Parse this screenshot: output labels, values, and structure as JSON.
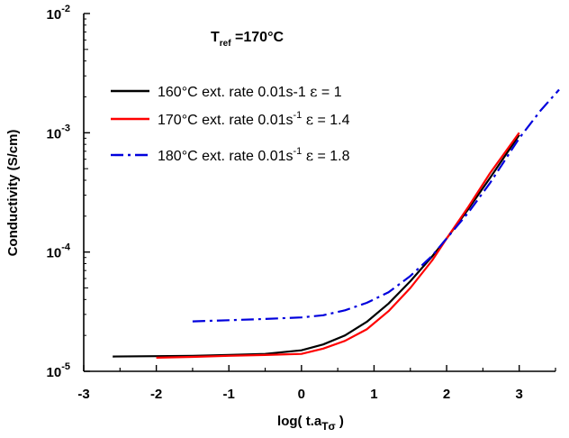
{
  "chart_data": {
    "type": "line",
    "xlabel": {
      "main": "log( t.a",
      "sub": "Tσ",
      "close": " )"
    },
    "ylabel": "Conductivity (S/cm)",
    "xlim": [
      -3,
      3.5
    ],
    "ylim": [
      1e-05,
      0.01
    ],
    "y_scale": "log",
    "x_ticks": [
      -3,
      -2,
      -1,
      0,
      1,
      2,
      3
    ],
    "y_ticks": [
      {
        "value": 1e-05,
        "base": "10",
        "exp": "-5"
      },
      {
        "value": 0.0001,
        "base": "10",
        "exp": "-4"
      },
      {
        "value": 0.001,
        "base": "10",
        "exp": "-3"
      },
      {
        "value": 0.01,
        "base": "10",
        "exp": "-2"
      }
    ],
    "grid": false,
    "legend_position": "top-left",
    "annotation": {
      "main": "T",
      "sub": "ref",
      "rest": " =170°C"
    },
    "series": [
      {
        "legend": {
          "pre": "160°C ext. rate 0.01s-1 ",
          "sup": "",
          "post": "",
          "sym": "ε",
          "tail": " = 1"
        },
        "color": "#000000",
        "dash": "",
        "x": [
          -2.6,
          -2.0,
          -1.5,
          -1.0,
          -0.5,
          0.0,
          0.3,
          0.6,
          0.9,
          1.2,
          1.5,
          1.8,
          2.0,
          2.3,
          2.6,
          3.0
        ],
        "y": [
          1.33e-05,
          1.34e-05,
          1.35e-05,
          1.37e-05,
          1.4e-05,
          1.5e-05,
          1.68e-05,
          2e-05,
          2.6e-05,
          3.7e-05,
          5.7e-05,
          9.2e-05,
          0.00013,
          0.00023,
          0.00042,
          0.00096
        ]
      },
      {
        "legend": {
          "pre": "170°C ext. rate 0.01s",
          "sup": "-1",
          "post": " ",
          "sym": "ε",
          "tail": " = 1.4"
        },
        "color": "#ff0000",
        "dash": "",
        "x": [
          -2.0,
          -1.5,
          -1.0,
          -0.5,
          0.0,
          0.3,
          0.6,
          0.9,
          1.2,
          1.5,
          1.8,
          2.0,
          2.3,
          2.6,
          3.0
        ],
        "y": [
          1.3e-05,
          1.32e-05,
          1.35e-05,
          1.37e-05,
          1.4e-05,
          1.55e-05,
          1.8e-05,
          2.25e-05,
          3.2e-05,
          5e-05,
          8.5e-05,
          0.00013,
          0.00024,
          0.00046,
          0.001
        ]
      },
      {
        "legend": {
          "pre": "180°C ext. rate 0.01s",
          "sup": "-1",
          "post": " ",
          "sym": "ε",
          "tail": " = 1.8"
        },
        "color": "#0000dd",
        "dash": "14 5 3 5",
        "x": [
          -1.5,
          -1.0,
          -0.5,
          0.0,
          0.3,
          0.6,
          0.9,
          1.2,
          1.5,
          1.8,
          2.0,
          2.3,
          2.6,
          3.0,
          3.3,
          3.55
        ],
        "y": [
          2.62e-05,
          2.68e-05,
          2.75e-05,
          2.83e-05,
          2.95e-05,
          3.25e-05,
          3.75e-05,
          4.6e-05,
          6.3e-05,
          9.3e-05,
          0.00013,
          0.000215,
          0.00038,
          0.0009,
          0.00155,
          0.0023
        ]
      }
    ]
  }
}
